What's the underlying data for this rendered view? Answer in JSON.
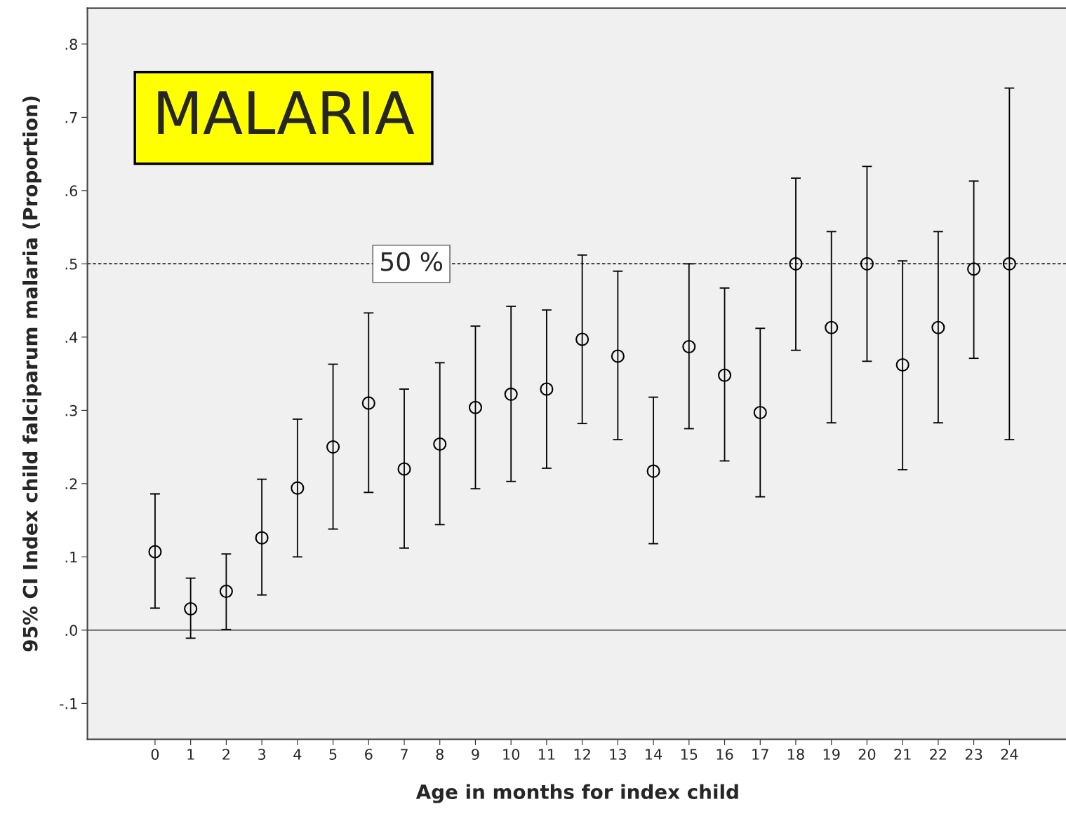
{
  "chart_data": {
    "type": "scatter",
    "xlabel": "Age in months for index child",
    "ylabel": "95% CI Index child falciparum malaria (Proportion)",
    "categories": [
      "0",
      "1",
      "2",
      "3",
      "4",
      "5",
      "6",
      "7",
      "8",
      "9",
      "10",
      "11",
      "12",
      "13",
      "14",
      "15",
      "16",
      "17",
      "18",
      "19",
      "20",
      "21",
      "22",
      "23",
      "24"
    ],
    "values": [
      0.107,
      0.029,
      0.053,
      0.126,
      0.194,
      0.25,
      0.31,
      0.22,
      0.254,
      0.304,
      0.322,
      0.329,
      0.397,
      0.374,
      0.217,
      0.387,
      0.348,
      0.297,
      0.5,
      0.413,
      0.5,
      0.362,
      0.413,
      0.493,
      0.5
    ],
    "errors": [
      [
        0.03,
        0.186
      ],
      [
        -0.011,
        0.071
      ],
      [
        0.001,
        0.104
      ],
      [
        0.048,
        0.206
      ],
      [
        0.1,
        0.288
      ],
      [
        0.138,
        0.363
      ],
      [
        0.188,
        0.433
      ],
      [
        0.112,
        0.329
      ],
      [
        0.144,
        0.365
      ],
      [
        0.193,
        0.415
      ],
      [
        0.203,
        0.442
      ],
      [
        0.221,
        0.437
      ],
      [
        0.282,
        0.512
      ],
      [
        0.26,
        0.49
      ],
      [
        0.118,
        0.318
      ],
      [
        0.275,
        0.5
      ],
      [
        0.231,
        0.467
      ],
      [
        0.182,
        0.412
      ],
      [
        0.382,
        0.617
      ],
      [
        0.283,
        0.544
      ],
      [
        0.367,
        0.633
      ],
      [
        0.219,
        0.504
      ],
      [
        0.283,
        0.544
      ],
      [
        0.371,
        0.613
      ],
      [
        0.26,
        0.74
      ]
    ],
    "color": "#000000",
    "marker": "circle",
    "grid": false,
    "ylim": [
      -0.149,
      0.849
    ],
    "yticks": [
      {
        "value": -0.1,
        "label": "-.1"
      },
      {
        "value": 0,
        "label": ".0"
      },
      {
        "value": 0.1,
        "label": ".1"
      },
      {
        "value": 0.2,
        "label": ".2"
      },
      {
        "value": 0.3,
        "label": ".3"
      },
      {
        "value": 0.4,
        "label": ".4"
      },
      {
        "value": 0.5,
        "label": ".5"
      },
      {
        "value": 0.6,
        "label": ".6"
      },
      {
        "value": 0.7,
        "label": ".7"
      },
      {
        "value": 0.8,
        "label": ".8"
      }
    ],
    "ref_lines": [
      {
        "axis": "y",
        "value": 0,
        "line_style": "solid",
        "color": "#808080"
      },
      {
        "axis": "y",
        "value": 0.5,
        "label": "50 %",
        "line_style": "dashed",
        "color": "#000000"
      }
    ],
    "annotations": [
      "MALARIA"
    ]
  }
}
